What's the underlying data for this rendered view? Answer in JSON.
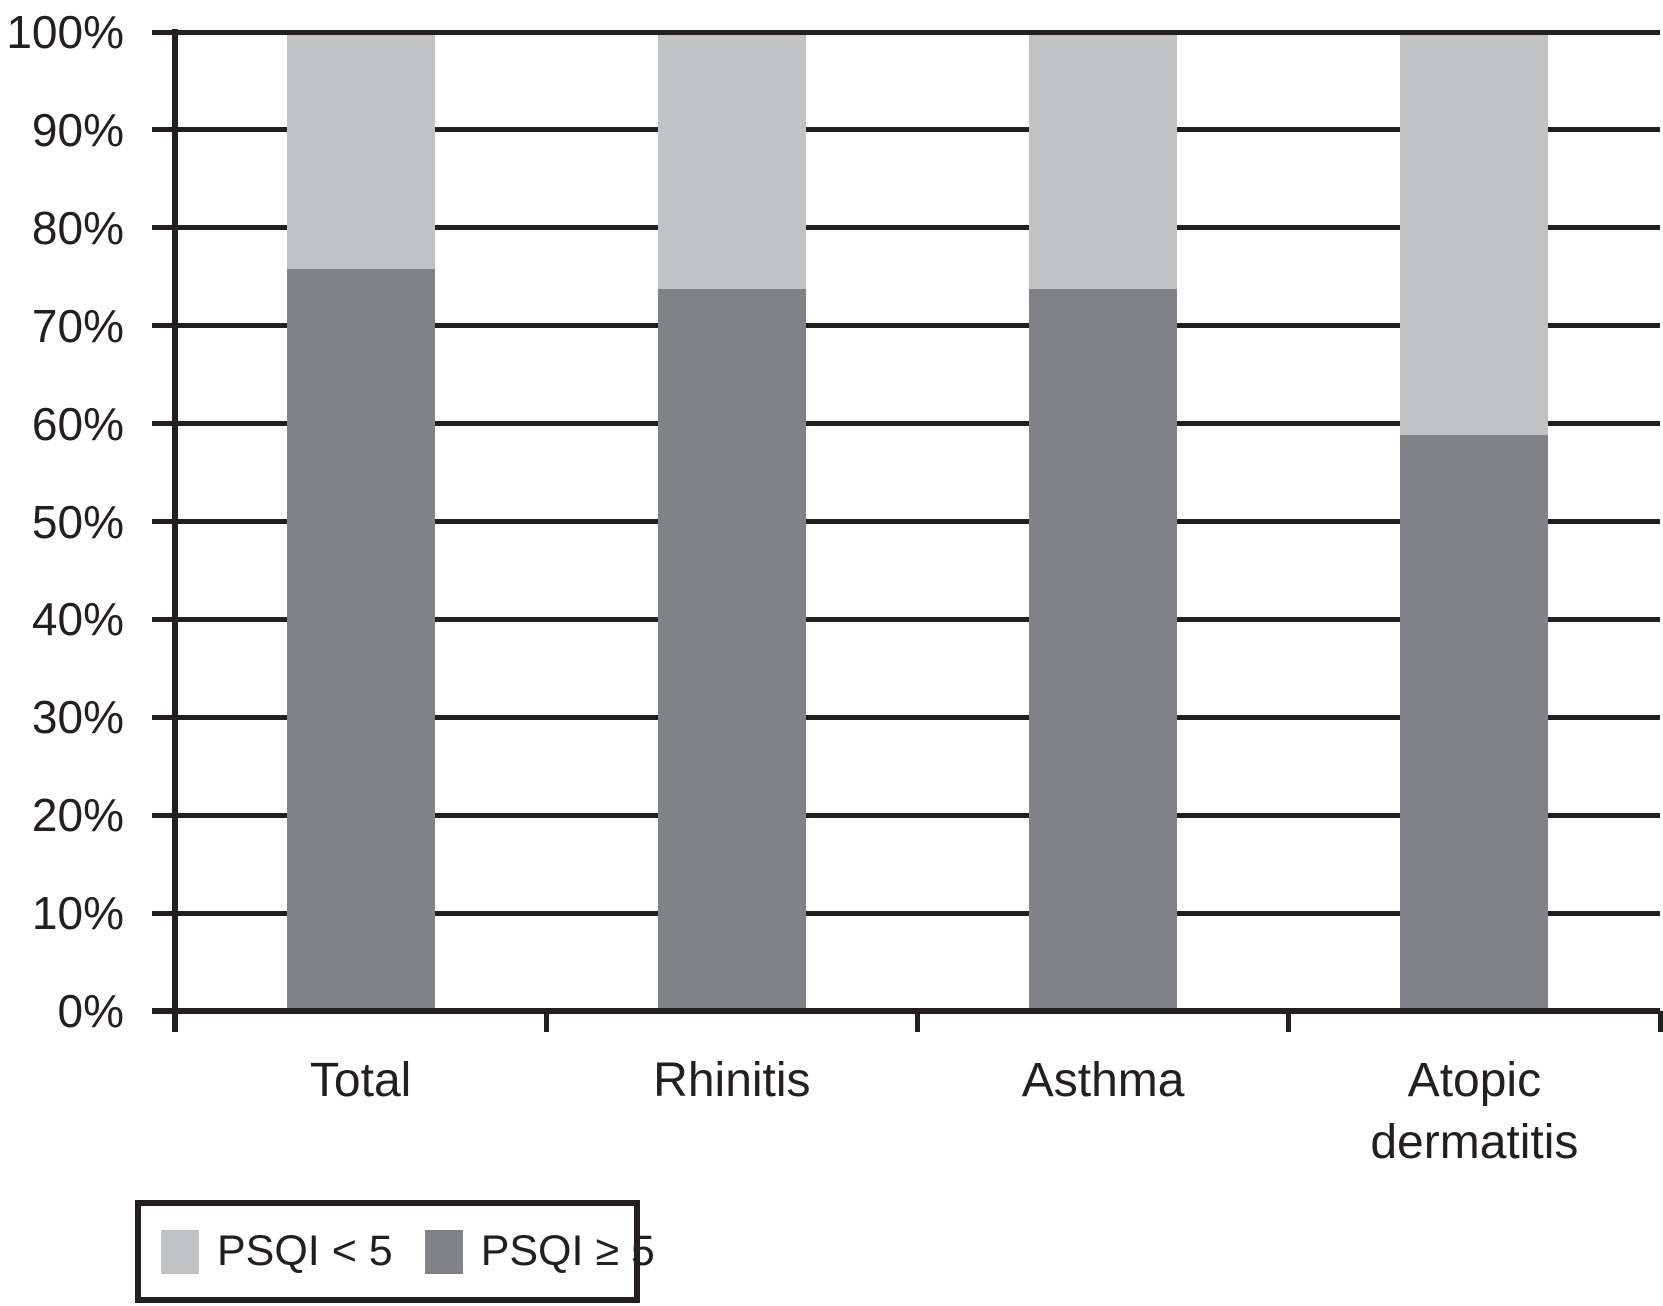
{
  "figure": {
    "background_color": "#ffffff",
    "text_color": "#231f20",
    "line_color": "#231f20"
  },
  "chart_data": {
    "type": "bar",
    "stacked": true,
    "unit": "percent",
    "title": "",
    "xlabel": "",
    "ylabel": "",
    "categories": [
      "Total",
      "Rhinitis",
      "Asthma",
      "Atopic dermatitis"
    ],
    "series": [
      {
        "name": "PSQI ≥ 5",
        "color": "#808285",
        "position": "bottom",
        "values": [
          76,
          74,
          74,
          59
        ]
      },
      {
        "name": "PSQI < 5",
        "color": "#c0c2c4",
        "position": "top",
        "values": [
          24,
          26,
          26,
          41
        ]
      }
    ],
    "y_axis": {
      "min": 0,
      "max": 100,
      "tick_step": 10,
      "tick_labels": [
        "0%",
        "10%",
        "20%",
        "30%",
        "40%",
        "50%",
        "60%",
        "70%",
        "80%",
        "90%",
        "100%"
      ]
    },
    "grid": true,
    "legend": {
      "position": "bottom-left",
      "entries": [
        {
          "label": "PSQI < 5",
          "color": "#c0c2c4"
        },
        {
          "label": "PSQI ≥ 5",
          "color": "#808285"
        }
      ]
    }
  }
}
